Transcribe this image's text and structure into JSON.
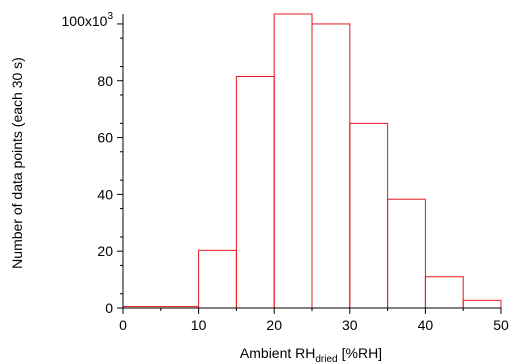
{
  "chart_data": {
    "type": "bar",
    "bin_edges": [
      0,
      10,
      15,
      20,
      25,
      30,
      35,
      40,
      45,
      50
    ],
    "values": [
      500,
      20300,
      81500,
      103500,
      100000,
      65000,
      38300,
      11000,
      2700
    ],
    "xlabel_main": "Ambient RH",
    "xlabel_sub": "dried",
    "xlabel_unit": "[%RH]",
    "ylabel": "Number of data points (each 30 s)",
    "xlim": [
      0,
      50
    ],
    "ylim": [
      0,
      103500
    ],
    "x_ticks": [
      "0",
      "10",
      "20",
      "30",
      "40",
      "50"
    ],
    "y_ticks": [
      "0",
      "20",
      "40",
      "60",
      "80"
    ],
    "y_top_tick_base": "100x10",
    "y_top_tick_exp": "3",
    "bar_color": "#e8191f",
    "grid": false
  }
}
